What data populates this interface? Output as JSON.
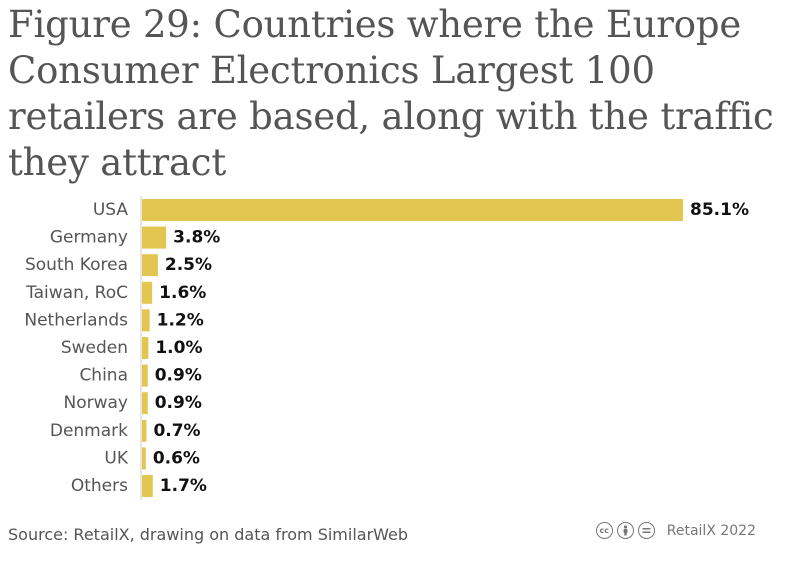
{
  "title": "Figure 29: Countries where the Europe Consumer Electronics Largest 100 retailers are based, along with the traffic they attract",
  "source": "Source: RetailX, drawing on data from SimilarWeb",
  "brand": "RetailX 2022",
  "license_icons": [
    "cc-icon",
    "by-icon",
    "nd-icon"
  ],
  "colors": {
    "bar": "#e3c64f",
    "axis": "#cccccc",
    "label": "#555555",
    "value_label": "#111111"
  },
  "chart_data": {
    "type": "bar",
    "orientation": "horizontal",
    "title": "Figure 29: Countries where the Europe Consumer Electronics Largest 100 retailers are based, along with the traffic they attract",
    "categories": [
      "USA",
      "Germany",
      "South Korea",
      "Taiwan, RoC",
      "Netherlands",
      "Sweden",
      "China",
      "Norway",
      "Denmark",
      "UK",
      "Others"
    ],
    "values": [
      85.1,
      3.8,
      2.5,
      1.6,
      1.2,
      1.0,
      0.9,
      0.9,
      0.7,
      0.6,
      1.7
    ],
    "value_labels": [
      "85.1%",
      "3.8%",
      "2.5%",
      "1.6%",
      "1.2%",
      "1.0%",
      "0.9%",
      "0.9%",
      "0.7%",
      "0.6%",
      "1.7%"
    ],
    "unit": "%",
    "xlim": [
      0,
      85.1
    ],
    "grid": false,
    "legend": "none"
  }
}
